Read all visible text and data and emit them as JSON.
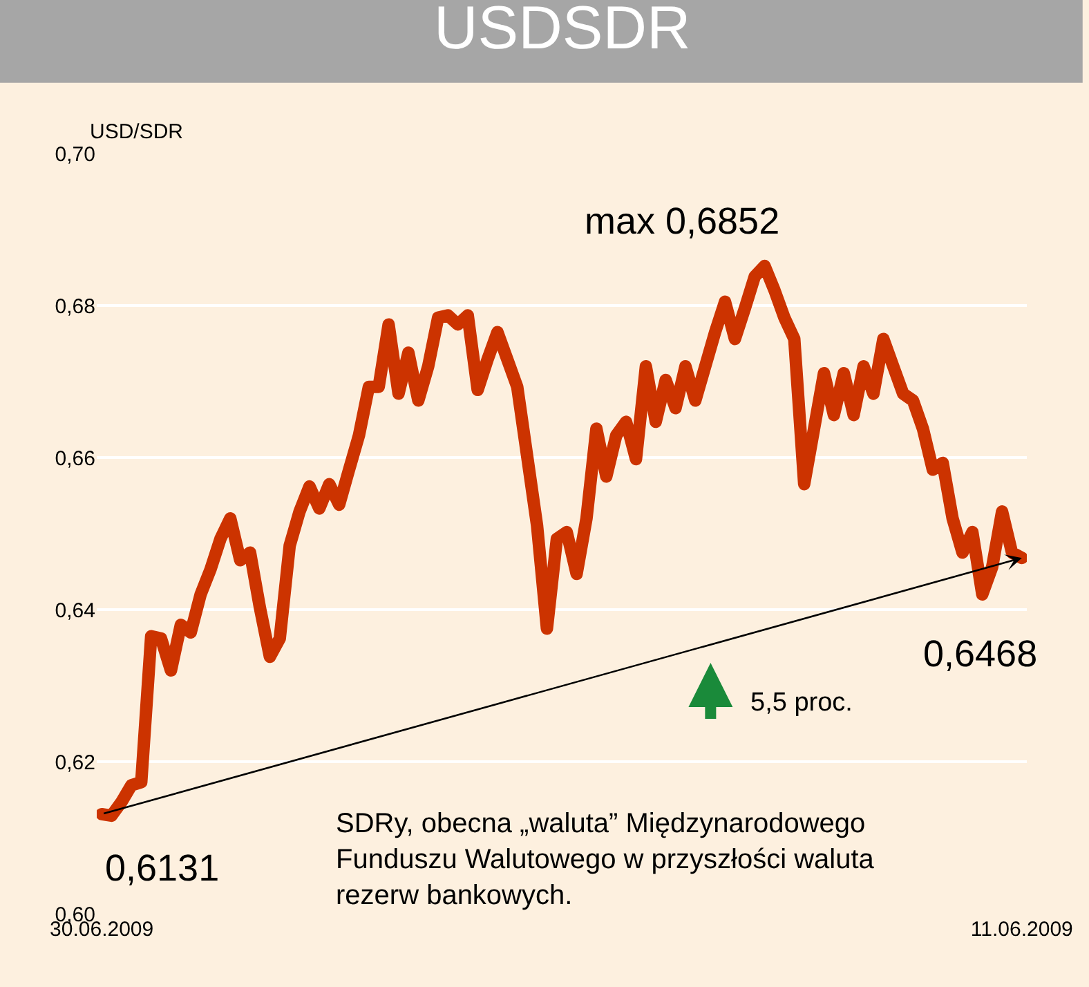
{
  "chart_data": {
    "type": "line",
    "title": "USDSDR",
    "ylabel": "USD/SDR",
    "categories": [
      "30.06.2009",
      null,
      null,
      null,
      null,
      null,
      null,
      null,
      null,
      null,
      null,
      null,
      null,
      null,
      null,
      null,
      null,
      null,
      null,
      null,
      null,
      null,
      null,
      null,
      null,
      null,
      null,
      null,
      null,
      null,
      null,
      null,
      null,
      null,
      null,
      null,
      null,
      null,
      null,
      null,
      null,
      null,
      null,
      null,
      null,
      null,
      null,
      null,
      null,
      null,
      null,
      null,
      null,
      null,
      null,
      null,
      null,
      null,
      null,
      null,
      null,
      null,
      null,
      null,
      null,
      null,
      null,
      null,
      null,
      null,
      null,
      null,
      null,
      null,
      null,
      null,
      null,
      null,
      null,
      null,
      null,
      null,
      null,
      null,
      null,
      null,
      null,
      null,
      null,
      null,
      null,
      null,
      null,
      "11.06.2009"
    ],
    "series": [
      {
        "color": "#cc3300",
        "values": [
          0.6131,
          0.6129,
          0.6147,
          0.6169,
          0.6173,
          0.6365,
          0.6362,
          0.632,
          0.638,
          0.637,
          0.642,
          0.6453,
          0.6493,
          0.652,
          0.6465,
          0.6475,
          0.6402,
          0.6338,
          0.6362,
          0.6484,
          0.6529,
          0.6562,
          0.6533,
          0.6565,
          0.6538,
          0.6584,
          0.6629,
          0.6693,
          0.6693,
          0.6775,
          0.6684,
          0.6738,
          0.6675,
          0.672,
          0.6784,
          0.6787,
          0.6775,
          0.6787,
          0.6689,
          0.6729,
          0.6765,
          0.6729,
          0.6693,
          0.6602,
          0.6511,
          0.6375,
          0.6493,
          0.6502,
          0.6447,
          0.652,
          0.6638,
          0.6575,
          0.6629,
          0.6647,
          0.6598,
          0.672,
          0.6647,
          0.6702,
          0.6665,
          0.672,
          0.6675,
          0.672,
          0.6765,
          0.6805,
          0.6756,
          0.6796,
          0.6838,
          0.6852,
          0.682,
          0.6784,
          0.6756,
          0.6565,
          0.6638,
          0.6711,
          0.6656,
          0.6711,
          0.6656,
          0.672,
          0.6684,
          0.6756,
          0.672,
          0.6684,
          0.6675,
          0.6638,
          0.6584,
          0.6593,
          0.652,
          0.6475,
          0.6502,
          0.642,
          0.6456,
          0.6529,
          0.6475,
          0.6468
        ]
      }
    ],
    "ylim": [
      0.6,
      0.7
    ],
    "yticks": [
      {
        "value": 0.6,
        "label": "0,60"
      },
      {
        "value": 0.62,
        "label": "0,62"
      },
      {
        "value": 0.64,
        "label": "0,64"
      },
      {
        "value": 0.66,
        "label": "0,66"
      },
      {
        "value": 0.68,
        "label": "0,68"
      },
      {
        "value": 0.7,
        "label": "0,70"
      }
    ],
    "grid": "y",
    "line_style": "solid",
    "annotations": [
      "max 0,6852",
      "0,6131",
      "0,6468",
      "5,5 proc.",
      "SDRy, obecna „waluta” Międzynarodowego\nFunduszu Walutowego w przyszłości waluta\nrezerw bankowych."
    ]
  }
}
